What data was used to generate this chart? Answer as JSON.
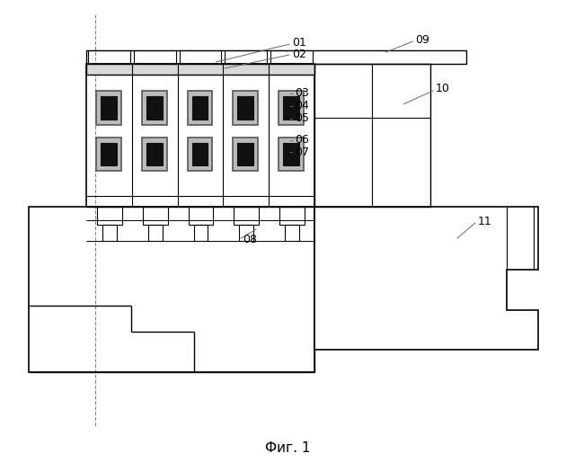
{
  "title": "Фиг. 1",
  "bg_color": "#ffffff",
  "line_color": "#000000",
  "lw": 1.0,
  "fig_width": 6.4,
  "fig_height": 5.24
}
